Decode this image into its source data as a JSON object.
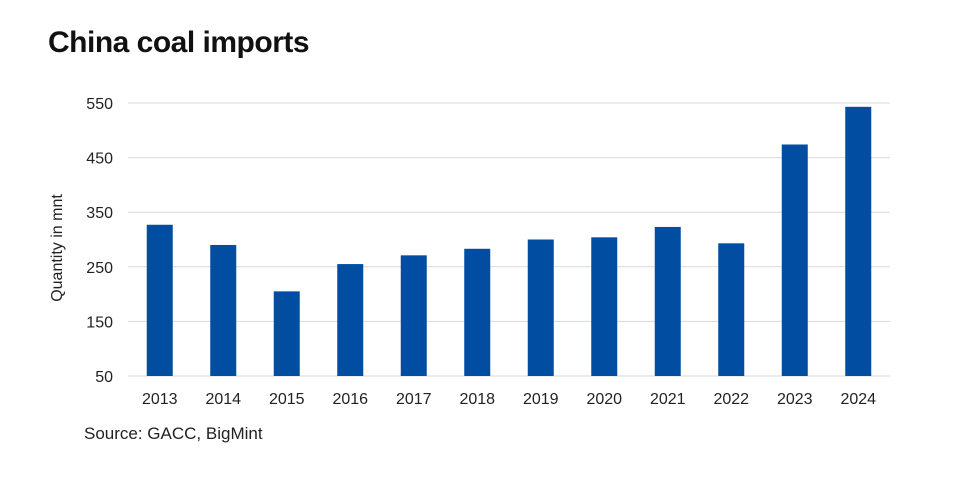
{
  "title": "China coal imports",
  "source": "Source: GACC, BigMint",
  "colors": {
    "bar": "#004DA1",
    "grid": "#D9D9D9"
  },
  "chart_data": {
    "type": "bar",
    "title": "China coal imports",
    "xlabel": "",
    "ylabel": "Quantity in mnt",
    "categories": [
      "2013",
      "2014",
      "2015",
      "2016",
      "2017",
      "2018",
      "2019",
      "2020",
      "2021",
      "2022",
      "2023",
      "2024"
    ],
    "values": [
      327,
      290,
      205,
      255,
      271,
      283,
      300,
      304,
      323,
      293,
      474,
      543
    ],
    "ylim": [
      50,
      550
    ],
    "yticks": [
      50,
      150,
      250,
      350,
      450,
      550
    ],
    "grid": true,
    "legend": "none"
  }
}
